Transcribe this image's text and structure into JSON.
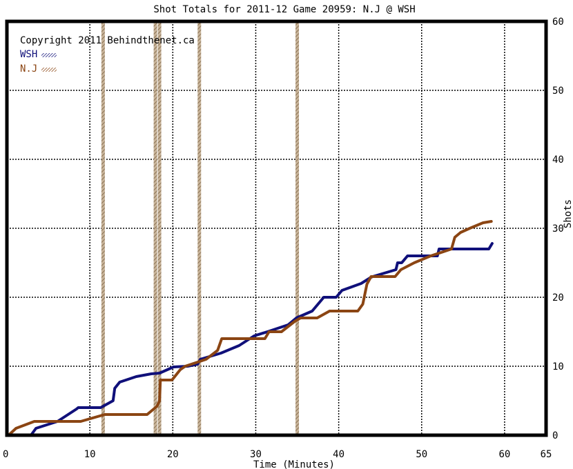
{
  "chart_data": {
    "type": "line",
    "title": "Shot Totals for 2011-12 Game 20959: N.J @ WSH",
    "xlabel": "Time (Minutes)",
    "ylabel": "Shots",
    "xlim": [
      0,
      65
    ],
    "ylim": [
      0,
      60
    ],
    "x_ticks": [
      "0",
      "10",
      "20",
      "30",
      "40",
      "50",
      "60",
      "65"
    ],
    "y_ticks": [
      "0",
      "10",
      "20",
      "30",
      "40",
      "50",
      "60"
    ],
    "grid": true,
    "legend_position": "top-left",
    "copyright": "Copyright 2011 Behindthenet.ca",
    "penalty_lines": [
      11.6,
      17.9,
      18.4,
      23.2,
      35.0
    ],
    "series": [
      {
        "name": "WSH",
        "color": "#10107a",
        "points": [
          [
            0.2,
            0
          ],
          [
            2.9,
            0
          ],
          [
            3.5,
            1
          ],
          [
            6.1,
            2
          ],
          [
            8.4,
            3.8
          ],
          [
            8.6,
            4
          ],
          [
            11.3,
            4
          ],
          [
            12.8,
            5
          ],
          [
            13,
            6.8
          ],
          [
            13.6,
            7.7
          ],
          [
            15.6,
            8.5
          ],
          [
            17.4,
            8.9
          ],
          [
            18.4,
            9
          ],
          [
            20.1,
            9.9
          ],
          [
            21.8,
            10
          ],
          [
            23,
            10.3
          ],
          [
            23.3,
            11
          ],
          [
            25.8,
            11.9
          ],
          [
            28,
            13
          ],
          [
            29.8,
            14.4
          ],
          [
            31.4,
            15
          ],
          [
            33.9,
            16
          ],
          [
            34.9,
            17
          ],
          [
            36.8,
            18
          ],
          [
            37.5,
            19
          ],
          [
            38.2,
            20
          ],
          [
            39.7,
            20
          ],
          [
            40.4,
            21
          ],
          [
            42.7,
            22
          ],
          [
            43.9,
            22.9
          ],
          [
            44.1,
            23
          ],
          [
            46.9,
            24
          ],
          [
            47.1,
            25
          ],
          [
            47.6,
            25
          ],
          [
            48.3,
            26
          ],
          [
            49.1,
            26
          ],
          [
            51.9,
            26
          ],
          [
            52.1,
            27
          ],
          [
            58.1,
            27
          ],
          [
            58.5,
            27.8
          ]
        ]
      },
      {
        "name": "N.J",
        "color": "#8b4513",
        "points": [
          [
            0.2,
            0
          ],
          [
            1.1,
            1
          ],
          [
            3.3,
            2
          ],
          [
            6.8,
            2
          ],
          [
            8.9,
            2
          ],
          [
            11.8,
            3
          ],
          [
            16.9,
            3
          ],
          [
            18.1,
            4.2
          ],
          [
            18.4,
            5
          ],
          [
            18.5,
            8
          ],
          [
            19.9,
            8
          ],
          [
            20.9,
            9.5
          ],
          [
            21.5,
            10
          ],
          [
            24,
            11
          ],
          [
            25.4,
            12.3
          ],
          [
            25.9,
            14
          ],
          [
            28.4,
            14
          ],
          [
            31.1,
            14
          ],
          [
            31.6,
            15
          ],
          [
            33.1,
            15
          ],
          [
            34.7,
            16.5
          ],
          [
            35.4,
            17
          ],
          [
            37.4,
            17
          ],
          [
            38.9,
            18
          ],
          [
            42.3,
            18
          ],
          [
            42.9,
            19
          ],
          [
            43.4,
            21.9
          ],
          [
            43.9,
            23
          ],
          [
            46.8,
            23
          ],
          [
            47.5,
            24
          ],
          [
            49.1,
            25
          ],
          [
            51.1,
            26
          ],
          [
            53.6,
            27
          ],
          [
            54,
            28.7
          ],
          [
            54.7,
            29.4
          ],
          [
            55.8,
            30
          ],
          [
            57.4,
            30.8
          ],
          [
            58.4,
            31
          ]
        ]
      }
    ]
  }
}
